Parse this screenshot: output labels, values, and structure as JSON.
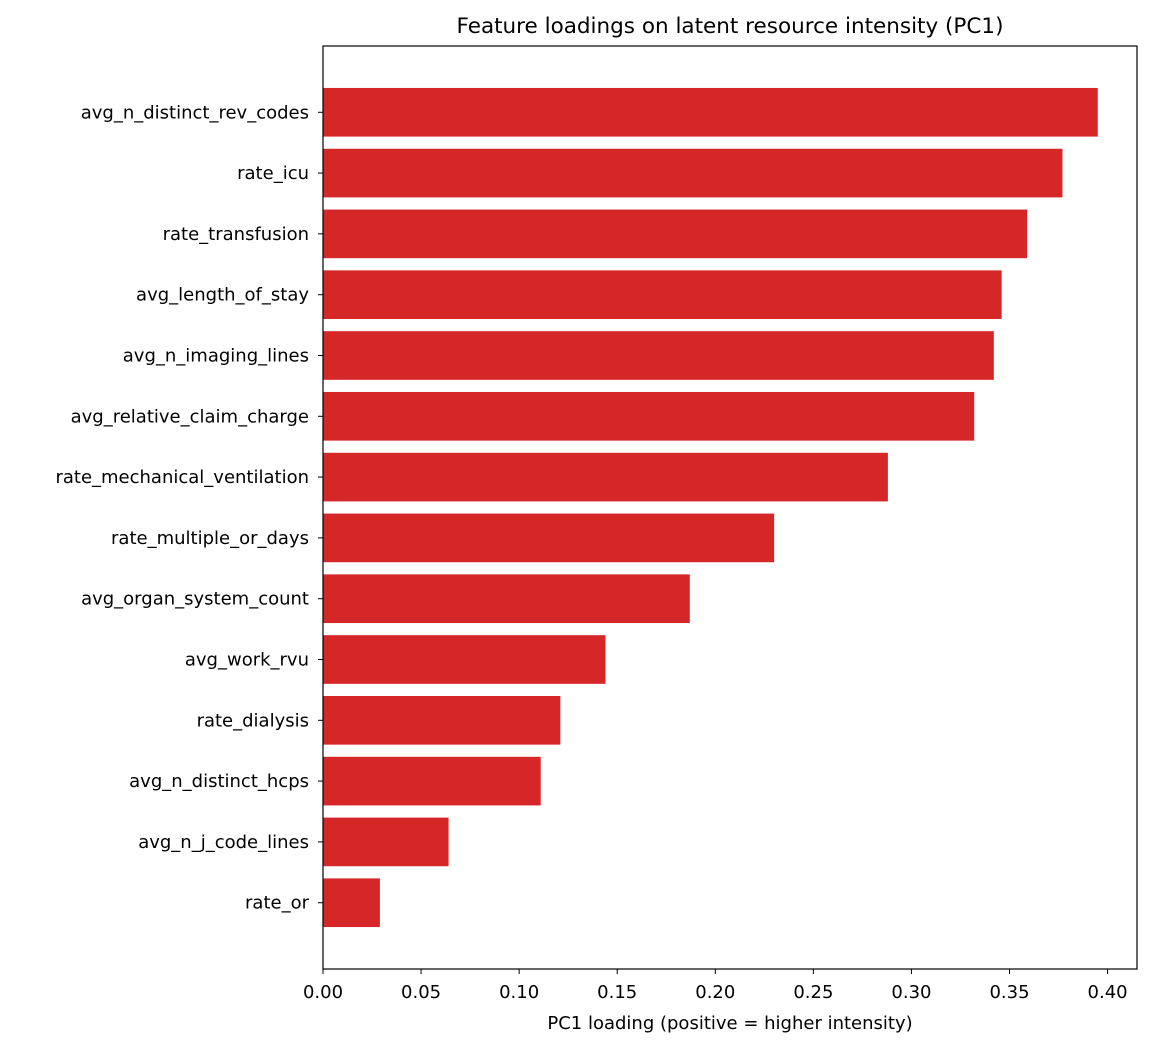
{
  "chart_data": {
    "type": "bar",
    "orientation": "horizontal",
    "title": "Feature loadings on latent resource intensity (PC1)",
    "xlabel": "PC1 loading (positive = higher intensity)",
    "ylabel": "",
    "xlim": [
      0,
      0.415
    ],
    "xticks": [
      "0.00",
      "0.05",
      "0.10",
      "0.15",
      "0.20",
      "0.25",
      "0.30",
      "0.35",
      "0.40"
    ],
    "grid": false,
    "bar_color": "#d62728",
    "categories": [
      "avg_n_distinct_rev_codes",
      "rate_icu",
      "rate_transfusion",
      "avg_length_of_stay",
      "avg_n_imaging_lines",
      "avg_relative_claim_charge",
      "rate_mechanical_ventilation",
      "rate_multiple_or_days",
      "avg_organ_system_count",
      "avg_work_rvu",
      "rate_dialysis",
      "avg_n_distinct_hcps",
      "avg_n_j_code_lines",
      "rate_or"
    ],
    "values": [
      0.395,
      0.377,
      0.359,
      0.346,
      0.342,
      0.332,
      0.288,
      0.23,
      0.187,
      0.144,
      0.121,
      0.111,
      0.064,
      0.029
    ]
  }
}
